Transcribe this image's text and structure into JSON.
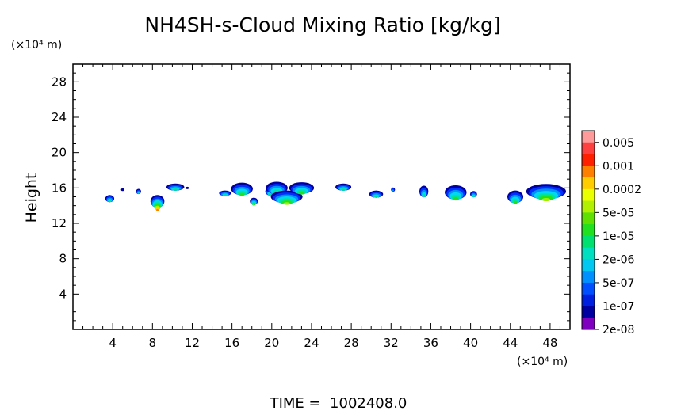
{
  "chart_data": {
    "type": "heatmap",
    "title": "NH4SH-s-Cloud Mixing Ratio [kg/kg]",
    "ylabel": "Height",
    "y_unit_label": "(×10⁴ m)",
    "x_unit_label": "(×10⁴ m)",
    "xlim": [
      0,
      50
    ],
    "ylim": [
      0,
      30
    ],
    "x_ticks": [
      4,
      8,
      12,
      16,
      20,
      24,
      28,
      32,
      36,
      40,
      44,
      48
    ],
    "y_ticks": [
      4,
      8,
      12,
      16,
      20,
      24,
      28
    ],
    "x_tick_labels": [
      "4",
      "8",
      "12",
      "16",
      "20",
      "24",
      "28",
      "32",
      "36",
      "40",
      "44",
      "48"
    ],
    "y_tick_labels": [
      "4",
      "8",
      "12",
      "16",
      "20",
      "24",
      "28"
    ],
    "colorbar": {
      "labels": [
        "0.005",
        "0.001",
        "0.0002",
        "5e-05",
        "1e-05",
        "2e-06",
        "5e-07",
        "1e-07",
        "2e-08"
      ],
      "colors": [
        "#ff9a9a",
        "#ff4040",
        "#ff2000",
        "#ff8000",
        "#ffcc00",
        "#eaff00",
        "#b0f000",
        "#60e000",
        "#20e020",
        "#00e070",
        "#00e0c0",
        "#00c8f0",
        "#0090ff",
        "#0050ff",
        "#0020e0",
        "#0000a0",
        "#8000c0"
      ]
    },
    "cells": [
      {
        "x": 3.7,
        "y": 14.8,
        "w": 0.9,
        "h": 0.8,
        "level": 4
      },
      {
        "x": 5.0,
        "y": 15.8,
        "w": 0.3,
        "h": 0.3,
        "level": 0
      },
      {
        "x": 6.6,
        "y": 15.6,
        "w": 0.5,
        "h": 0.6,
        "level": 3
      },
      {
        "x": 8.5,
        "y": 14.5,
        "w": 1.4,
        "h": 1.4,
        "level": 8
      },
      {
        "x": 10.3,
        "y": 16.1,
        "w": 1.8,
        "h": 0.8,
        "level": 4
      },
      {
        "x": 11.5,
        "y": 16.0,
        "w": 0.2,
        "h": 0.2,
        "level": 0
      },
      {
        "x": 15.3,
        "y": 15.4,
        "w": 1.2,
        "h": 0.6,
        "level": 4
      },
      {
        "x": 17.0,
        "y": 15.9,
        "w": 2.2,
        "h": 1.4,
        "level": 5
      },
      {
        "x": 18.2,
        "y": 14.5,
        "w": 0.8,
        "h": 0.8,
        "level": 6
      },
      {
        "x": 19.8,
        "y": 15.6,
        "w": 0.9,
        "h": 0.9,
        "level": 4
      },
      {
        "x": 20.5,
        "y": 16.0,
        "w": 2.2,
        "h": 1.4,
        "level": 5
      },
      {
        "x": 21.5,
        "y": 15.0,
        "w": 3.2,
        "h": 1.4,
        "level": 6
      },
      {
        "x": 23.0,
        "y": 16.0,
        "w": 2.5,
        "h": 1.3,
        "level": 5
      },
      {
        "x": 27.2,
        "y": 16.1,
        "w": 1.6,
        "h": 0.8,
        "level": 4
      },
      {
        "x": 30.5,
        "y": 15.3,
        "w": 1.4,
        "h": 0.8,
        "level": 4
      },
      {
        "x": 32.2,
        "y": 15.8,
        "w": 0.4,
        "h": 0.5,
        "level": 2
      },
      {
        "x": 35.3,
        "y": 15.6,
        "w": 0.9,
        "h": 1.3,
        "level": 4
      },
      {
        "x": 38.5,
        "y": 15.5,
        "w": 2.2,
        "h": 1.6,
        "level": 5
      },
      {
        "x": 40.3,
        "y": 15.3,
        "w": 0.7,
        "h": 0.7,
        "level": 4
      },
      {
        "x": 44.5,
        "y": 15.0,
        "w": 1.6,
        "h": 1.4,
        "level": 5
      },
      {
        "x": 47.6,
        "y": 15.6,
        "w": 4.0,
        "h": 1.7,
        "level": 6
      }
    ]
  },
  "footer": {
    "time_label": "TIME =  1002408.0"
  }
}
